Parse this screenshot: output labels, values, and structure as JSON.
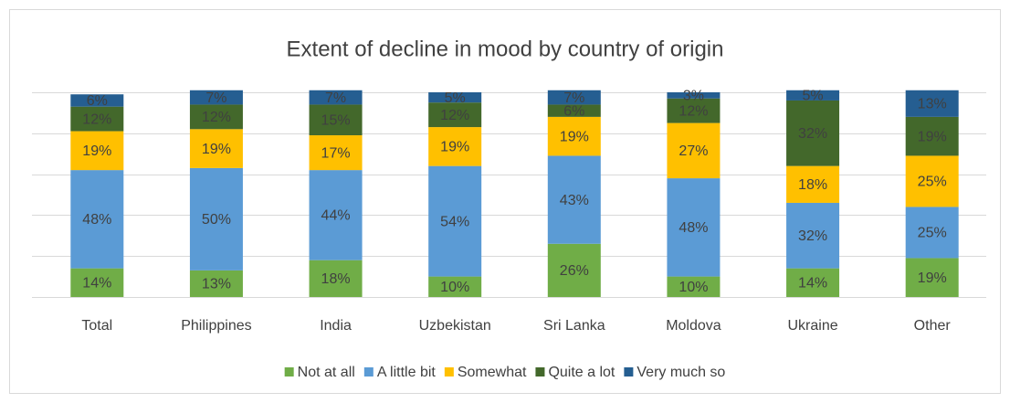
{
  "chart_data": {
    "type": "stacked_bar",
    "title": "Extent of decline in mood by country of origin",
    "categories": [
      "Total",
      "Philippines",
      "India",
      "Uzbekistan",
      "Sri Lanka",
      "Moldova",
      "Ukraine",
      "Other"
    ],
    "series": [
      {
        "name": "Not at all",
        "color": "#70ad47",
        "values": [
          14,
          13,
          18,
          10,
          26,
          10,
          14,
          19
        ],
        "value_labels": [
          "14%",
          "13%",
          "18%",
          "10%",
          "26%",
          "10%",
          "14%",
          "19%"
        ]
      },
      {
        "name": "A little bit",
        "color": "#5b9bd5",
        "values": [
          48,
          50,
          44,
          54,
          43,
          48,
          32,
          25
        ],
        "value_labels": [
          "48%",
          "50%",
          "44%",
          "54%",
          "43%",
          "48%",
          "32%",
          "25%"
        ]
      },
      {
        "name": "Somewhat",
        "color": "#ffc000",
        "values": [
          19,
          19,
          17,
          19,
          19,
          27,
          18,
          25
        ],
        "value_labels": [
          "19%",
          "19%",
          "17%",
          "19%",
          "19%",
          "27%",
          "18%",
          "25%"
        ]
      },
      {
        "name": "Quite a lot",
        "color": "#43682b",
        "values": [
          12,
          12,
          15,
          12,
          6,
          12,
          32,
          19
        ],
        "value_labels": [
          "12%",
          "12%",
          "15%",
          "12%",
          "6%",
          "12%",
          "32%",
          "19%"
        ]
      },
      {
        "name": "Very much so",
        "color": "#255e91",
        "values": [
          6,
          7,
          7,
          5,
          7,
          3,
          5,
          13
        ],
        "value_labels": [
          "6%",
          "7%",
          "7%",
          "5%",
          "7%",
          "3%",
          "5%",
          "13%"
        ]
      }
    ],
    "ylim": [
      0,
      100
    ],
    "yticks": [
      0,
      20,
      40,
      60,
      80,
      100
    ],
    "grid": true,
    "legend": "bottom"
  }
}
